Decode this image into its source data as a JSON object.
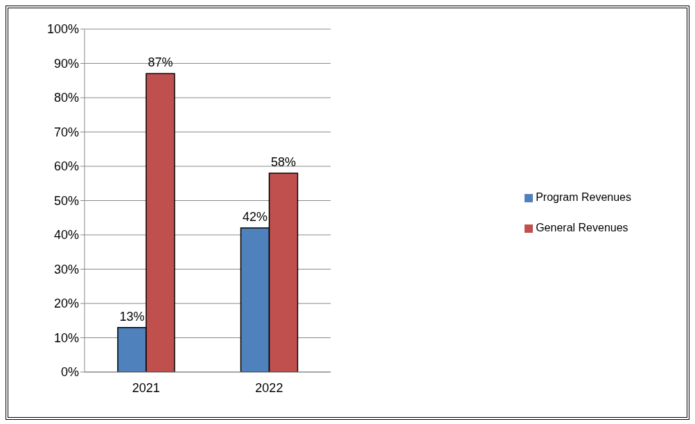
{
  "chart_data": {
    "type": "bar",
    "categories": [
      "2021",
      "2022"
    ],
    "series": [
      {
        "name": "Program Revenues",
        "color": "#4f81bd",
        "values": [
          13,
          42
        ],
        "value_labels": [
          "13%",
          "42%"
        ]
      },
      {
        "name": "General Revenues",
        "color": "#c0504d",
        "values": [
          87,
          58
        ],
        "value_labels": [
          "87%",
          "58%"
        ]
      }
    ],
    "ylim": [
      0,
      100
    ],
    "yticks": [
      {
        "value": 0,
        "label": "0%"
      },
      {
        "value": 10,
        "label": "10%"
      },
      {
        "value": 20,
        "label": "20%"
      },
      {
        "value": 30,
        "label": "30%"
      },
      {
        "value": 40,
        "label": "40%"
      },
      {
        "value": 50,
        "label": "50%"
      },
      {
        "value": 60,
        "label": "60%"
      },
      {
        "value": 70,
        "label": "70%"
      },
      {
        "value": 80,
        "label": "80%"
      },
      {
        "value": 90,
        "label": "90%"
      },
      {
        "value": 100,
        "label": "100%"
      }
    ],
    "grid": "y",
    "legend": "right"
  }
}
